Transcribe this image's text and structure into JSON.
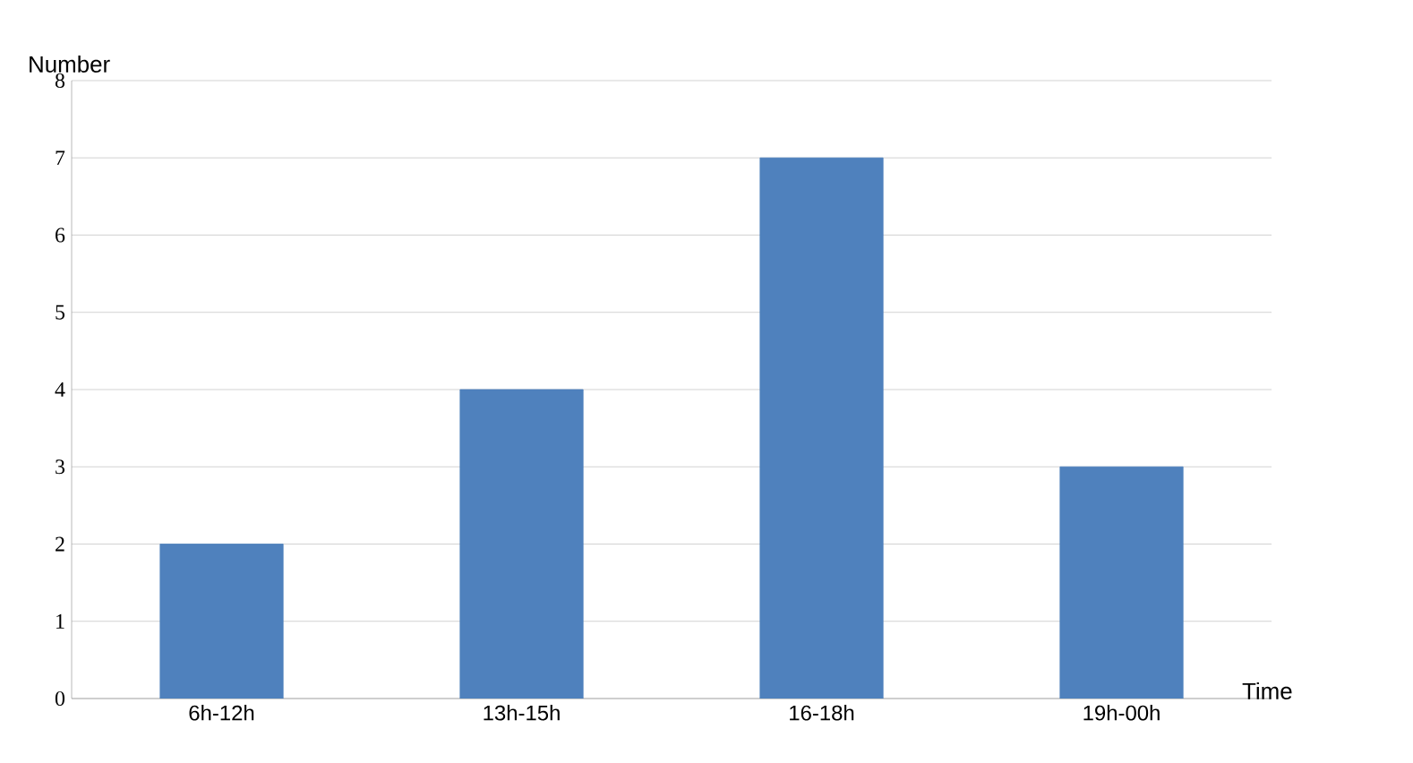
{
  "chart_data": {
    "type": "bar",
    "xlabel": "Time",
    "ylabel": "Number",
    "categories": [
      "6h-12h",
      "13h-15h",
      "16-18h",
      "19h-00h"
    ],
    "values": [
      2,
      4,
      7,
      3
    ],
    "color": "#4f81bd",
    "ylim": [
      0,
      8
    ],
    "yticks": [
      0,
      1,
      2,
      3,
      4,
      5,
      6,
      7,
      8
    ],
    "grid": "y"
  }
}
